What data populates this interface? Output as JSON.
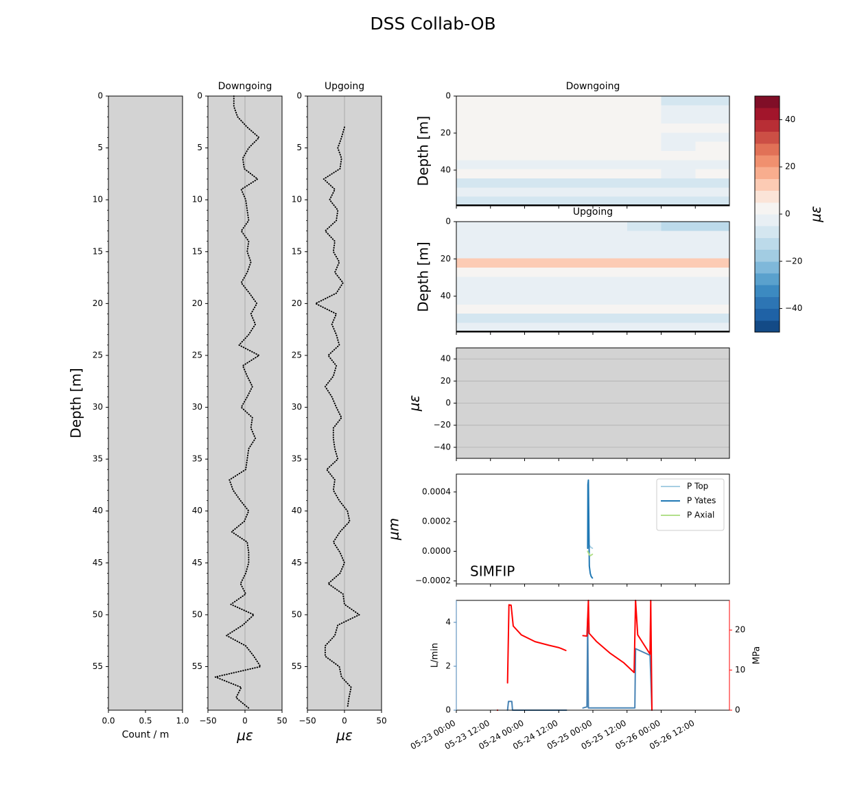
{
  "title": "DSS Collab-OB",
  "chart_data": [
    {
      "type": "bar",
      "xlabel": "Count / m",
      "ylabel": "Depth [m]",
      "background": "#d3d3d3",
      "xlim": [
        0,
        1
      ],
      "xticks": [
        {
          "value": 0,
          "label": "0.0"
        },
        {
          "value": 0.5,
          "label": "0.5"
        },
        {
          "value": 1,
          "label": "1.0"
        }
      ],
      "ylim": [
        59.2,
        0
      ],
      "yticks": [
        0,
        5,
        10,
        15,
        20,
        25,
        30,
        35,
        40,
        45,
        50,
        55
      ]
    },
    {
      "type": "line",
      "orientation": "horizontal",
      "title": "Downgoing",
      "xlabel": "με",
      "background": "#d3d3d3",
      "color": "#000000",
      "linestyle": "dotted",
      "zero_line": true,
      "xlim": [
        -50,
        50
      ],
      "xticks": [
        {
          "value": -50,
          "label": "−50"
        },
        0,
        50
      ],
      "ylim": [
        59.2,
        0
      ],
      "yticks": [
        0,
        5,
        10,
        15,
        20,
        25,
        30,
        35,
        40,
        45,
        50,
        55
      ],
      "y": [
        0,
        1,
        2,
        3,
        4,
        5,
        6,
        7,
        8,
        9,
        10,
        11,
        12,
        13,
        14,
        15,
        16,
        17,
        18,
        19,
        20,
        21,
        22,
        23,
        24,
        25,
        26,
        27,
        28,
        29,
        30,
        31,
        32,
        33,
        34,
        35,
        36,
        37,
        38,
        39,
        40,
        41,
        42,
        43,
        44,
        45,
        46,
        47,
        48,
        49,
        50,
        51,
        52,
        53,
        54,
        55,
        56,
        57,
        58,
        59
      ],
      "values": [
        -15,
        -15,
        -10,
        3,
        19,
        5,
        -3,
        -1,
        17,
        -5,
        1,
        3,
        5,
        -5,
        5,
        3,
        8,
        3,
        -5,
        6,
        16,
        8,
        14,
        5,
        -8,
        19,
        -3,
        3,
        10,
        3,
        -5,
        10,
        8,
        14,
        5,
        3,
        1,
        -21,
        -16,
        -6,
        5,
        -1,
        -18,
        3,
        5,
        5,
        1,
        -6,
        1,
        -19,
        12,
        -3,
        -25,
        1,
        12,
        21,
        -40,
        -5,
        -12,
        5
      ]
    },
    {
      "type": "line",
      "orientation": "horizontal",
      "title": "Upgoing",
      "xlabel": "με",
      "background": "#d3d3d3",
      "color": "#000000",
      "linestyle": "dotted",
      "zero_line": true,
      "xlim": [
        -50,
        50
      ],
      "xticks": [
        {
          "value": -50,
          "label": "−50"
        },
        0,
        50
      ],
      "ylim": [
        59.2,
        0
      ],
      "yticks": [
        0,
        5,
        10,
        15,
        20,
        25,
        30,
        35,
        40,
        45,
        50,
        55
      ],
      "y": [
        0,
        1,
        2,
        3,
        4,
        5,
        6,
        7,
        8,
        9,
        10,
        11,
        12,
        13,
        14,
        15,
        16,
        17,
        18,
        19,
        20,
        21,
        22,
        23,
        24,
        25,
        26,
        27,
        28,
        29,
        30,
        31,
        32,
        33,
        34,
        35,
        36,
        37,
        38,
        39,
        40,
        41,
        42,
        43,
        44,
        45,
        46,
        47,
        48,
        49,
        50,
        51,
        52,
        53,
        54,
        55,
        56,
        57,
        58,
        59
      ],
      "values": [
        null,
        null,
        null,
        0,
        -4,
        -9,
        -4,
        -6,
        -28,
        -13,
        -20,
        -9,
        -11,
        -26,
        -13,
        -15,
        -7,
        -13,
        -2,
        -11,
        -39,
        -11,
        -17,
        -11,
        -7,
        -22,
        -11,
        -15,
        -26,
        -17,
        -11,
        -4,
        -15,
        -15,
        -13,
        -9,
        -24,
        -13,
        -15,
        -7,
        4,
        7,
        -6,
        -15,
        -6,
        0,
        -6,
        -22,
        -2,
        0,
        20,
        -9,
        -13,
        -26,
        -26,
        -7,
        -4,
        9,
        6,
        4
      ]
    },
    {
      "type": "heatmap",
      "title": "Downgoing",
      "ylabel": "Depth [m]",
      "xlim": [
        "05-23 00:00",
        "05-27 00:00"
      ],
      "ylim": [
        59.3,
        0
      ],
      "yticks": [
        0,
        20,
        40
      ],
      "zlim": [
        -50,
        50
      ],
      "colors": [
        "#134a86",
        "#1f62a6",
        "#2d75b4",
        "#3c8ac1",
        "#5aa1cd",
        "#7fb8da",
        "#a2cce2",
        "#bcdaea",
        "#d4e6f0",
        "#e8eff4",
        "#f6f4f2",
        "#fbe4d8",
        "#fccbb4",
        "#f8ad8e",
        "#f0906f",
        "#e17157",
        "#cc4f45",
        "#b82e35",
        "#a2152b",
        "#800e27"
      ],
      "colorbar": {
        "label": "με",
        "ticks": [
          {
            "value": -40,
            "label": "−40"
          },
          {
            "value": -20,
            "label": "−20"
          },
          0,
          20,
          40
        ]
      },
      "z": [
        [
          2,
          3,
          2,
          3,
          2,
          3,
          -8,
          -8
        ],
        [
          1,
          2,
          1,
          2,
          1,
          2,
          -2,
          -2
        ],
        [
          2,
          1,
          2,
          3,
          1,
          2,
          -1,
          -1
        ],
        [
          1,
          2,
          1,
          2,
          2,
          1,
          0,
          0
        ],
        [
          0,
          1,
          1,
          2,
          1,
          1,
          -1,
          -1
        ],
        [
          1,
          2,
          2,
          3,
          1,
          2,
          -1,
          0
        ],
        [
          2,
          3,
          2,
          4,
          2,
          3,
          0,
          1
        ],
        [
          -1,
          -2,
          -1,
          -2,
          -1,
          -2,
          -3,
          -2
        ],
        [
          0,
          1,
          0,
          1,
          0,
          1,
          -1,
          0
        ],
        [
          -6,
          -8,
          -6,
          -8,
          -6,
          -7,
          -8,
          -7
        ],
        [
          -2,
          -3,
          -2,
          -3,
          -2,
          -3,
          -3,
          -2
        ],
        [
          -8,
          -9,
          -8,
          -9,
          -8,
          -9,
          -9,
          -8
        ]
      ]
    },
    {
      "type": "heatmap",
      "title": "Upgoing",
      "ylabel": "Depth [m]",
      "xlim": [
        "05-23 00:00",
        "05-27 00:00"
      ],
      "ylim": [
        59.3,
        0
      ],
      "yticks": [
        0,
        20,
        40
      ],
      "zlim": [
        -50,
        50
      ],
      "colors": [
        "#134a86",
        "#1f62a6",
        "#2d75b4",
        "#3c8ac1",
        "#5aa1cd",
        "#7fb8da",
        "#a2cce2",
        "#bcdaea",
        "#d4e6f0",
        "#e8eff4",
        "#f6f4f2",
        "#fbe4d8",
        "#fccbb4",
        "#f8ad8e",
        "#f0906f",
        "#e17157",
        "#cc4f45",
        "#b82e35",
        "#a2152b",
        "#800e27"
      ],
      "z": [
        [
          -2,
          -2,
          -2,
          -2,
          -2,
          -8,
          -12,
          -12
        ],
        [
          -3,
          -2,
          -3,
          -2,
          -3,
          -3,
          -4,
          -4
        ],
        [
          -2,
          -1,
          -2,
          -1,
          -2,
          -2,
          -3,
          -3
        ],
        [
          -1,
          -1,
          -2,
          -1,
          -1,
          -2,
          -2,
          -2
        ],
        [
          12,
          10,
          12,
          10,
          11,
          10,
          10,
          12
        ],
        [
          1,
          0,
          1,
          0,
          1,
          0,
          1,
          1
        ],
        [
          -2,
          -3,
          -2,
          -3,
          -2,
          -3,
          -2,
          -2
        ],
        [
          -4,
          -5,
          -4,
          -5,
          -4,
          -5,
          -4,
          -4
        ],
        [
          -1,
          -2,
          -1,
          -2,
          -1,
          -2,
          -1,
          -1
        ],
        [
          1,
          2,
          1,
          2,
          1,
          2,
          1,
          1
        ],
        [
          -7,
          -8,
          -7,
          -8,
          -7,
          -8,
          -7,
          -7
        ],
        [
          -5,
          -4,
          -5,
          -4,
          -5,
          -4,
          -5,
          -5
        ]
      ]
    },
    {
      "type": "line",
      "ylabel": "με",
      "background": "#d3d3d3",
      "grid": true,
      "xlim": [
        "05-23 00:00",
        "05-27 00:00"
      ],
      "ylim": [
        -50,
        50
      ],
      "yticks": [
        {
          "value": -40,
          "label": "−40"
        },
        {
          "value": -20,
          "label": "−20"
        },
        0,
        20,
        40
      ]
    },
    {
      "type": "line",
      "ylabel": "μm",
      "annotation": "SIMFIP",
      "legend": "upper right",
      "xlim": [
        "05-23 00:00",
        "05-27 00:00"
      ],
      "ylim": [
        -0.00022,
        0.00052
      ],
      "yticks": [
        {
          "value": -0.0002,
          "label": "−0.0002"
        },
        {
          "value": 0,
          "label": "0.0000"
        },
        0.0002,
        0.0004
      ],
      "series": [
        {
          "name": "P Top",
          "color": "#a6cee3",
          "x": [
            "05-24 22:25",
            "05-24 23:05",
            "05-24 23:50"
          ],
          "values": [
            5e-05,
            3e-05,
            2e-05
          ]
        },
        {
          "name": "P Yates",
          "color": "#1f78b4",
          "x": [
            "05-24 22:10",
            "05-24 22:15",
            "05-24 22:25",
            "05-24 22:35",
            "05-24 22:45",
            "05-24 23:05",
            "05-24 23:25",
            "05-24 23:50"
          ],
          "values": [
            2e-05,
            0.00045,
            0.00048,
            0.0002,
            -0.0001,
            -0.00015,
            -0.00017,
            -0.00018
          ]
        },
        {
          "name": "P Axial",
          "color": "#b2df8a",
          "x": [
            "05-24 22:10",
            "05-24 22:40",
            "05-24 23:05",
            "05-24 23:50"
          ],
          "values": [
            0,
            -2e-05,
            -3e-05,
            -2e-05
          ]
        }
      ]
    },
    {
      "type": "line",
      "ylabel": "L/min",
      "y2label": "MPa",
      "xlim": [
        "05-23 00:00",
        "05-27 00:00"
      ],
      "xticks": [
        "05-23 00:00",
        "05-23 12:00",
        "05-24 00:00",
        "05-24 12:00",
        "05-25 00:00",
        "05-25 12:00",
        "05-26 00:00",
        "05-26 12:00"
      ],
      "ylim": [
        0,
        5
      ],
      "yticks": [
        0,
        2,
        4
      ],
      "y2lim": [
        0,
        27.4
      ],
      "y2ticks": [
        0,
        10,
        20
      ],
      "series": [
        {
          "color": "#4682b4",
          "x": [
            "05-23 18:00",
            "05-23 18:20",
            "05-23 19:30",
            "05-23 19:45",
            "05-24 14:45",
            null,
            "05-24 20:30",
            "05-24 21:55",
            "05-24 22:10",
            "05-24 22:25",
            "05-25 14:45",
            "05-25 15:00",
            "05-25 20:05",
            "05-25 20:45"
          ],
          "values": [
            0,
            0.4,
            0.4,
            0,
            0,
            null,
            0.1,
            0.15,
            4.2,
            0.1,
            0.1,
            2.8,
            2.5,
            0
          ]
        },
        {
          "color": "#ff0000",
          "axis": "y2",
          "x": [
            "05-23 14:25",
            null,
            "05-23 18:00",
            "05-23 18:30",
            "05-23 19:15",
            "05-23 20:00",
            "05-23 22:50",
            "05-24 03:40",
            "05-24 08:30",
            "05-24 12:05",
            "05-24 12:50",
            "05-24 14:30",
            null,
            "05-24 20:30",
            "05-24 21:55",
            "05-24 22:25",
            "05-24 22:40",
            "05-25 01:20",
            "05-25 06:05",
            "05-25 10:55",
            "05-25 14:30",
            "05-25 15:00",
            "05-25 15:45",
            "05-25 18:05",
            "05-25 20:05",
            "05-25 20:20",
            "05-25 20:45"
          ],
          "values": [
            0,
            null,
            6.8,
            26.3,
            26.2,
            21,
            18.8,
            17.1,
            16.2,
            15.6,
            15.4,
            14.9,
            null,
            18.6,
            18.5,
            27.4,
            19.2,
            17.1,
            14.2,
            11.8,
            9.4,
            27.4,
            18.8,
            16.2,
            14,
            27.4,
            0
          ]
        }
      ]
    }
  ]
}
